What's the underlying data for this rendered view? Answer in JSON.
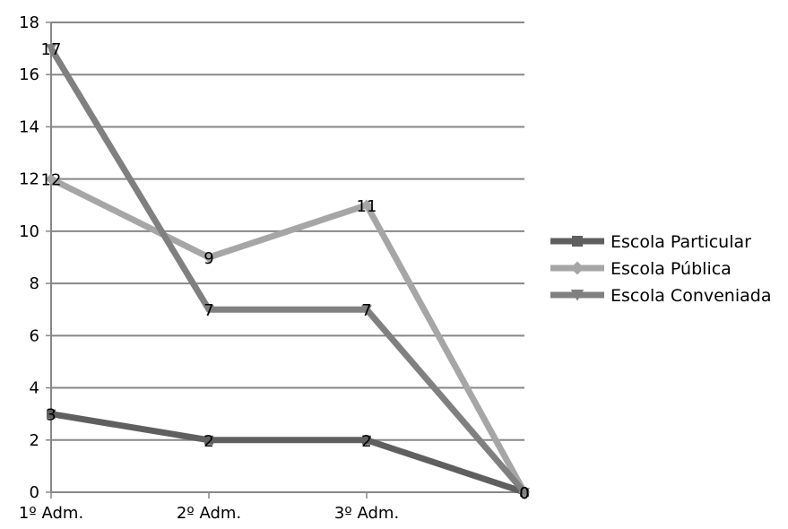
{
  "chart_data": {
    "type": "line",
    "categories": [
      "1º Adm.",
      "2º Adm.",
      "3º Adm.",
      ""
    ],
    "ylim": [
      0,
      18
    ],
    "ytick_step": 2,
    "grid": true,
    "legend_position": "right",
    "series": [
      {
        "name": "Escola Particular",
        "values": [
          3,
          2,
          2,
          0
        ],
        "color": "#5f5f5f",
        "marker": "square"
      },
      {
        "name": "Escola Pública",
        "values": [
          12,
          9,
          11,
          0
        ],
        "color": "#a6a6a6",
        "marker": "diamond"
      },
      {
        "name": "Escola Conveniada",
        "values": [
          17,
          7,
          7,
          0
        ],
        "color": "#808080",
        "marker": "triangle-down"
      }
    ]
  }
}
